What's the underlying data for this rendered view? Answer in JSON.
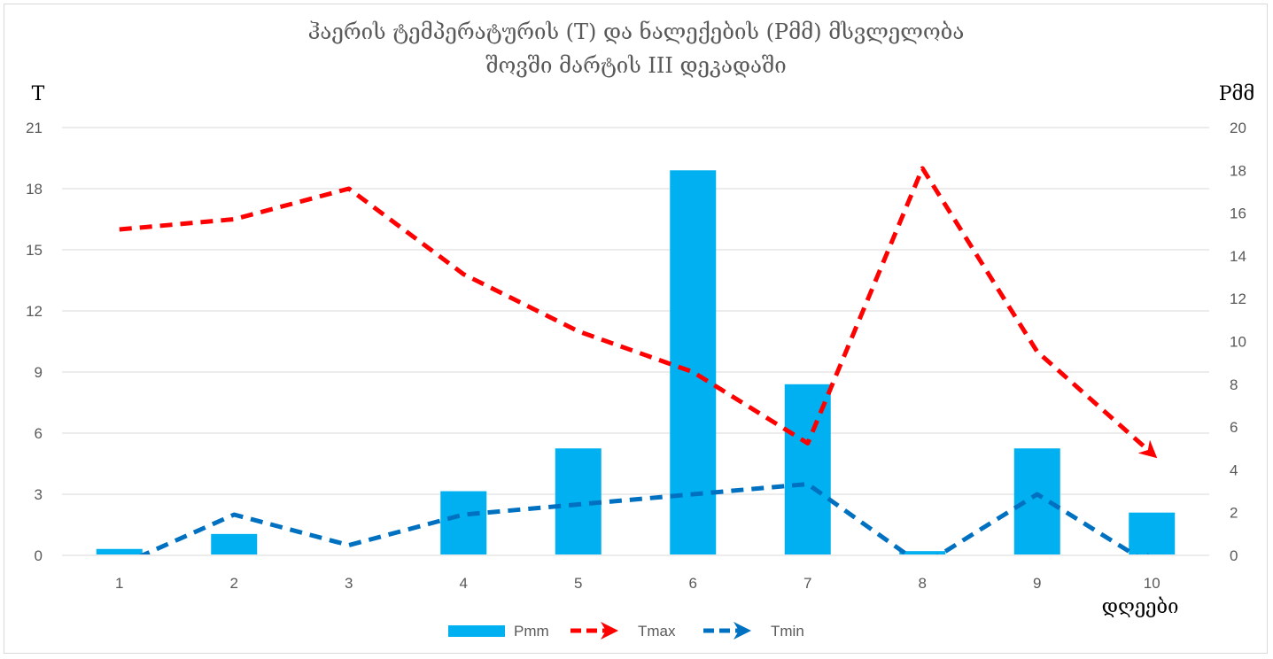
{
  "chart_data": {
    "type": "bar",
    "title": [
      "ჰაერის ტემპერატურის (T) და ნალექების (Pმმ) მსვლელობა",
      "შოვში მარტის III დეკადაში"
    ],
    "ylabel_left": "T",
    "ylabel_right": "Pმმ",
    "xlabel": "დღეები",
    "categories": [
      "1",
      "2",
      "3",
      "4",
      "5",
      "6",
      "7",
      "8",
      "9",
      "10"
    ],
    "ylim_left": [
      0,
      21
    ],
    "yticks_left": [
      0,
      3,
      6,
      9,
      12,
      15,
      18,
      21
    ],
    "ylim_right": [
      0,
      20
    ],
    "yticks_right": [
      0,
      2,
      4,
      6,
      8,
      10,
      12,
      14,
      16,
      18,
      20
    ],
    "grid": true,
    "legend_position": "bottom",
    "series": [
      {
        "name": "Pmm",
        "kind": "bar",
        "axis": "right",
        "color": "#00b0f0",
        "values": [
          0.3,
          1.0,
          0,
          3.0,
          5.0,
          18.0,
          8.0,
          0.2,
          5.0,
          2.0
        ]
      },
      {
        "name": "Tmax",
        "kind": "line",
        "axis": "left",
        "color": "#ff0000",
        "style": "dashed-arrow",
        "values": [
          16.0,
          16.5,
          18.0,
          13.8,
          11.0,
          9.0,
          5.5,
          19.0,
          10.0,
          5.0
        ]
      },
      {
        "name": "Tmin",
        "kind": "line",
        "axis": "left",
        "color": "#0070c0",
        "style": "dashed-arrow",
        "values": [
          -0.5,
          2.0,
          0.5,
          2.0,
          2.5,
          3.0,
          3.5,
          -0.5,
          3.0,
          -0.5
        ]
      }
    ]
  }
}
